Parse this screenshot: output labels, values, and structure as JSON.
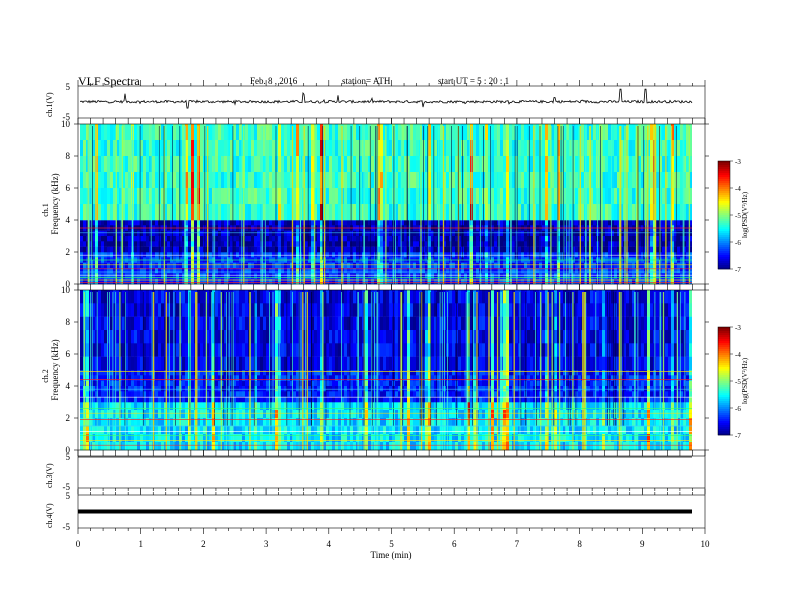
{
  "header": {
    "title": "VLF Spectra",
    "date": "Feb. 8 , 2016",
    "station": "station= ATH",
    "start": "start UT = 5 : 20 : 1"
  },
  "panels": {
    "ch1_wave_label": "ch.1(V)",
    "ch1_spec_label": "ch.1",
    "ch2_spec_label": "ch.2",
    "freq_label": "Frequency (kHz)",
    "ch3_label": "ch.3(V)",
    "ch4_label": "ch.4(V)",
    "colorbar_label": "log(PSD(V²/Hz)",
    "colorbar_ticks": [
      "-3",
      "-4",
      "-5",
      "-6",
      "-7"
    ],
    "wave_ticks": [
      "5",
      "-5"
    ]
  },
  "chart_data": [
    {
      "type": "line",
      "name": "ch.1 waveform",
      "ylabel": "ch.1(V)",
      "ylim": [
        -5,
        5
      ],
      "xlim": [
        0,
        10
      ],
      "baseline_v": 0.1,
      "spikes": [
        {
          "t": 0.75,
          "v": 2.6
        },
        {
          "t": 1.75,
          "v": -1.9
        },
        {
          "t": 3.6,
          "v": 2.4
        },
        {
          "t": 4.15,
          "v": 2.1
        },
        {
          "t": 5.5,
          "v": -1.6
        },
        {
          "t": 7.6,
          "v": 1.4
        },
        {
          "t": 8.65,
          "v": 4.0
        },
        {
          "t": 9.05,
          "v": 4.0
        }
      ]
    },
    {
      "type": "heatmap",
      "name": "ch.1 spectrogram",
      "ylabel": "Frequency (kHz)",
      "ylim": [
        0,
        10
      ],
      "xlim": [
        0,
        10
      ],
      "yticks": [
        "0",
        "2",
        "4",
        "6",
        "8",
        "10"
      ],
      "colorbar": {
        "label": "log(PSD(V²/Hz)",
        "range": [
          -7,
          -3
        ]
      },
      "bands": [
        {
          "f_low": 0,
          "f_high": 2,
          "level": -6.3
        },
        {
          "f_low": 2,
          "f_high": 4,
          "level": -6.8
        },
        {
          "f_low": 4,
          "f_high": 10,
          "level": -5.3
        }
      ]
    },
    {
      "type": "heatmap",
      "name": "ch.2 spectrogram",
      "ylabel": "Frequency (kHz)",
      "ylim": [
        0,
        10
      ],
      "xlim": [
        0,
        10
      ],
      "yticks": [
        "0",
        "2",
        "4",
        "6",
        "8",
        "10"
      ],
      "colorbar": {
        "label": "log(PSD(V²/Hz)",
        "range": [
          -7,
          -3
        ]
      },
      "bands": [
        {
          "f_low": 0,
          "f_high": 3,
          "level": -5.6
        },
        {
          "f_low": 3,
          "f_high": 5,
          "level": -6.4
        },
        {
          "f_low": 5,
          "f_high": 10,
          "level": -6.6
        }
      ]
    },
    {
      "type": "line",
      "name": "ch.3 waveform",
      "ylabel": "ch.3(V)",
      "ylim": [
        -5,
        5
      ],
      "xlim": [
        0,
        10
      ],
      "baseline_v": 5.0
    },
    {
      "type": "line",
      "name": "ch.4 waveform",
      "ylabel": "ch.4(V)",
      "ylim": [
        -5,
        5
      ],
      "xlim": [
        0,
        10
      ],
      "baseline_v": 0.0
    },
    {
      "type": "axis",
      "xlabel": "Time (min)",
      "xlim": [
        0,
        10
      ],
      "xticks": [
        "0",
        "1",
        "2",
        "3",
        "4",
        "5",
        "6",
        "7",
        "8",
        "9",
        "10"
      ]
    }
  ]
}
